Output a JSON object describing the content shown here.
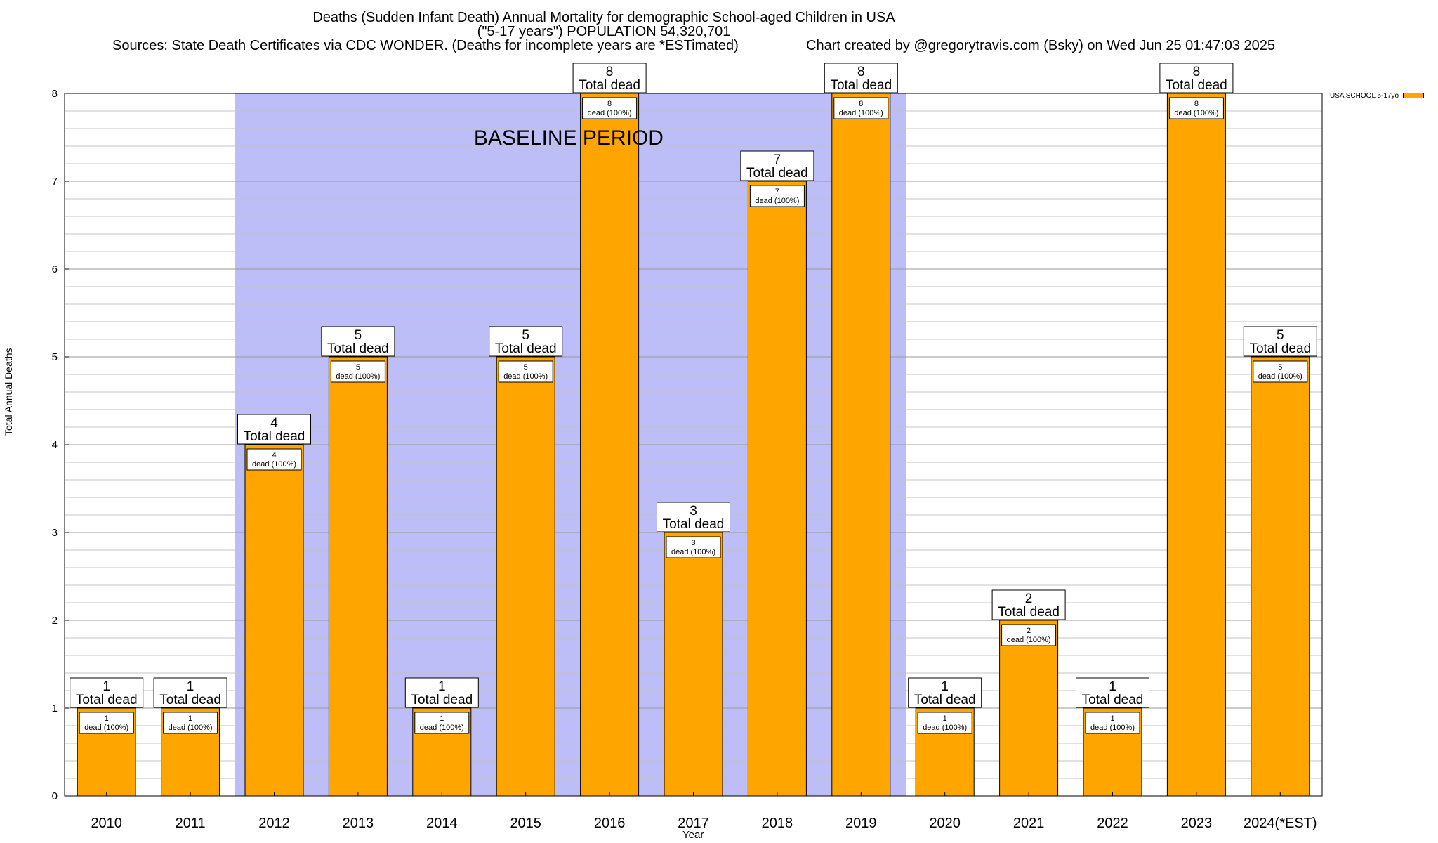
{
  "chart_data": {
    "type": "bar",
    "title_lines": [
      "Deaths (Sudden Infant Death) Annual Mortality for demographic School-aged Children in USA",
      "(\"5-17 years\") POPULATION 54,320,701"
    ],
    "sources": "Sources: State Death Certificates via CDC WONDER. (Deaths for incomplete years are *ESTimated)",
    "credit": "Chart created by @gregorytravis.com (Bsky) on Wed Jun 25 01:47:03 2025",
    "xlabel": "Year",
    "ylabel": "Total Annual Deaths",
    "ylim": [
      0,
      8
    ],
    "yticks": [
      0,
      1,
      2,
      3,
      4,
      5,
      6,
      7,
      8
    ],
    "categories": [
      "2010",
      "2011",
      "2012",
      "2013",
      "2014",
      "2015",
      "2016",
      "2017",
      "2018",
      "2019",
      "2020",
      "2021",
      "2022",
      "2023",
      "2024(*EST)"
    ],
    "series": [
      {
        "name": "USA SCHOOL 5-17yo",
        "color": "#ffa500",
        "values": [
          1,
          1,
          4,
          5,
          1,
          5,
          8,
          3,
          7,
          8,
          1,
          2,
          1,
          8,
          5
        ]
      }
    ],
    "label_top_suffix": "Total dead",
    "label_inner_suffix": "dead (100%)",
    "baseline": {
      "label": "BASELINE PERIOD",
      "from": "2012",
      "to": "2019",
      "color": "#bdbdf8"
    },
    "grid": "horizontal",
    "legend_position": "top-right"
  }
}
